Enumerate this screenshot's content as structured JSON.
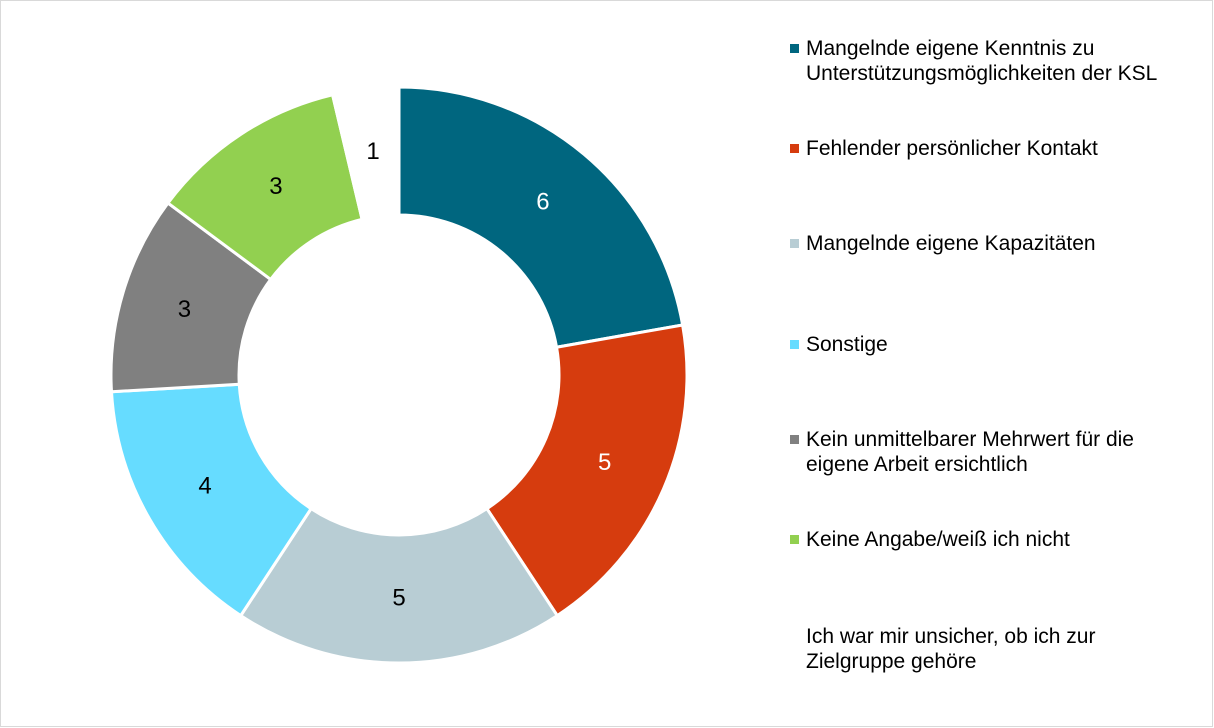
{
  "chart_data": {
    "type": "donut",
    "categories": [
      "Mangelnde eigene Kenntnis zu Unterstützungsmöglichkeiten der KSL",
      "Fehlender persönlicher Kontakt",
      "Mangelnde eigene Kapazitäten",
      "Sonstige",
      "Kein unmittelbarer Mehrwert für die eigene Arbeit ersichtlich",
      "Keine Angabe/weiß ich nicht",
      "Ich war mir unsicher, ob ich zur Zielgruppe gehöre"
    ],
    "values": [
      6,
      5,
      5,
      4,
      3,
      3,
      1
    ],
    "colors": [
      "#00667f",
      "#d63c0e",
      "#b8cdd4",
      "#66dcff",
      "#808080",
      "#92d050",
      "#ffffff"
    ],
    "legend": "right"
  }
}
